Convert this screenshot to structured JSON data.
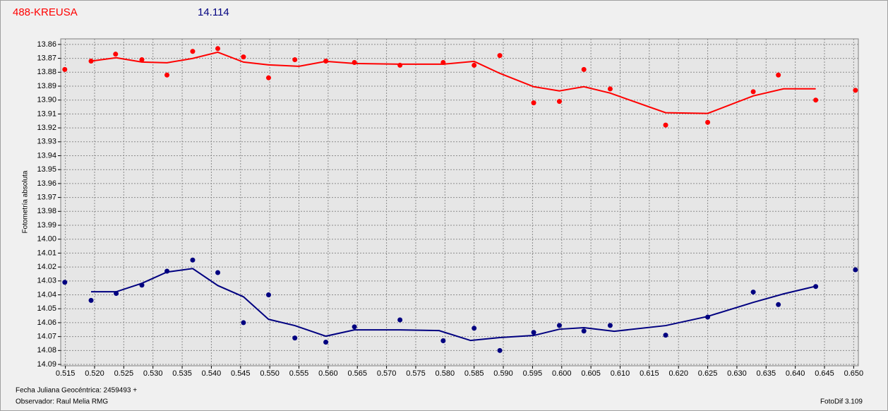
{
  "chart_data": {
    "type": "scatter",
    "title": "488-KREUSA",
    "subtitle": "14.114",
    "y_label": "Fotometría absoluta",
    "x_label": "Fecha Juliana Geocéntrica: 2459493 +",
    "observer": "Observador: Raul Melia RMG",
    "software": "FotoDif 3.109",
    "grid": true,
    "xlim": [
      0.5142,
      0.6508
    ],
    "ylim": [
      14.091,
      13.856
    ],
    "xticks": [
      0.515,
      {
        "value": 0.52,
        "label": "0.520"
      },
      0.525,
      {
        "value": 0.53,
        "label": "0.530"
      },
      0.535,
      {
        "value": 0.54,
        "label": "0.540"
      },
      0.545,
      {
        "value": 0.55,
        "label": "0.550"
      },
      0.555,
      {
        "value": 0.56,
        "label": "0.560"
      },
      0.565,
      {
        "value": 0.57,
        "label": "0.570"
      },
      0.575,
      {
        "value": 0.58,
        "label": "0.580"
      },
      0.585,
      {
        "value": 0.59,
        "label": "0.590"
      },
      0.595,
      {
        "value": 0.6,
        "label": "0.600"
      },
      0.605,
      {
        "value": 0.61,
        "label": "0.610"
      },
      0.615,
      {
        "value": 0.62,
        "label": "0.620"
      },
      0.625,
      {
        "value": 0.63,
        "label": "0.630"
      },
      0.635,
      {
        "value": 0.64,
        "label": "0.640"
      },
      0.645,
      {
        "value": 0.65,
        "label": "0.650"
      }
    ],
    "yticks": [
      13.86,
      13.87,
      13.88,
      13.89,
      {
        "value": 13.9,
        "label": "13.90"
      },
      13.91,
      13.92,
      13.93,
      13.94,
      13.95,
      13.96,
      13.97,
      13.98,
      13.99,
      {
        "value": 14,
        "label": "14.00"
      },
      14.01,
      14.02,
      14.03,
      14.04,
      14.05,
      14.06,
      14.07,
      14.08,
      14.09
    ],
    "series": [
      {
        "style": "points",
        "color": "#ff0000",
        "x": [
          0.5149,
          0.5194,
          0.5236,
          0.5281,
          0.5324,
          0.5368,
          0.5411,
          0.5455,
          0.5498,
          0.5543,
          0.5596,
          0.5645,
          0.5723,
          0.5797,
          0.585,
          0.5894,
          0.5952,
          0.5996,
          0.6038,
          0.6083,
          0.6178,
          0.625,
          0.6328,
          0.6371,
          0.6435,
          0.6503
        ],
        "values": [
          13.878,
          13.872,
          13.867,
          13.871,
          13.882,
          13.865,
          13.863,
          13.869,
          13.884,
          13.871,
          13.872,
          13.873,
          13.875,
          13.873,
          13.875,
          13.868,
          13.902,
          13.901,
          13.878,
          13.892,
          13.918,
          13.916,
          13.894,
          13.882,
          13.9,
          13.893
        ]
      },
      {
        "style": "points",
        "color": "#000080",
        "x": [
          0.5149,
          0.5194,
          0.5237,
          0.5281,
          0.5324,
          0.5368,
          0.5411,
          0.5455,
          0.5498,
          0.5543,
          0.5596,
          0.5645,
          0.5723,
          0.5797,
          0.585,
          0.5894,
          0.5952,
          0.5996,
          0.6038,
          0.6083,
          0.6178,
          0.625,
          0.6328,
          0.6371,
          0.6435,
          0.6503
        ],
        "values": [
          14.031,
          14.044,
          14.039,
          14.033,
          14.023,
          14.015,
          14.024,
          14.06,
          14.04,
          14.071,
          14.074,
          14.063,
          14.058,
          14.073,
          14.064,
          14.08,
          14.067,
          14.062,
          14.066,
          14.062,
          14.069,
          14.056,
          14.038,
          14.047,
          14.034,
          14.022
        ]
      },
      {
        "style": "line",
        "color": "#ff0000",
        "x": [
          0.5194,
          0.5237,
          0.5281,
          0.5324,
          0.5368,
          0.5411,
          0.5455,
          0.5498,
          0.555,
          0.5596,
          0.5645,
          0.5723,
          0.5797,
          0.585,
          0.5894,
          0.5952,
          0.5996,
          0.6038,
          0.6083,
          0.6178,
          0.625,
          0.6328,
          0.638,
          0.6435
        ],
        "values": [
          13.872,
          13.8696,
          13.8727,
          13.8732,
          13.8701,
          13.8656,
          13.8727,
          13.8747,
          13.8757,
          13.8722,
          13.8737,
          13.8742,
          13.8742,
          13.8722,
          13.8808,
          13.8904,
          13.8934,
          13.8904,
          13.895,
          13.9091,
          13.9096,
          13.897,
          13.8919,
          13.8919
        ]
      },
      {
        "style": "line",
        "color": "#000080",
        "x": [
          0.5194,
          0.5237,
          0.5281,
          0.5324,
          0.5368,
          0.5411,
          0.5455,
          0.5498,
          0.5543,
          0.5596,
          0.5645,
          0.5723,
          0.579,
          0.5844,
          0.5894,
          0.5952,
          0.5996,
          0.6038,
          0.609,
          0.6178,
          0.625,
          0.6328,
          0.638,
          0.6435
        ],
        "values": [
          14.0378,
          14.0378,
          14.0317,
          14.0236,
          14.0211,
          14.0333,
          14.0414,
          14.0576,
          14.0621,
          14.0697,
          14.0652,
          14.0652,
          14.0657,
          14.0728,
          14.0707,
          14.0692,
          14.0647,
          14.0636,
          14.0662,
          14.0621,
          14.0555,
          14.0454,
          14.0393,
          14.0338
        ]
      }
    ]
  }
}
